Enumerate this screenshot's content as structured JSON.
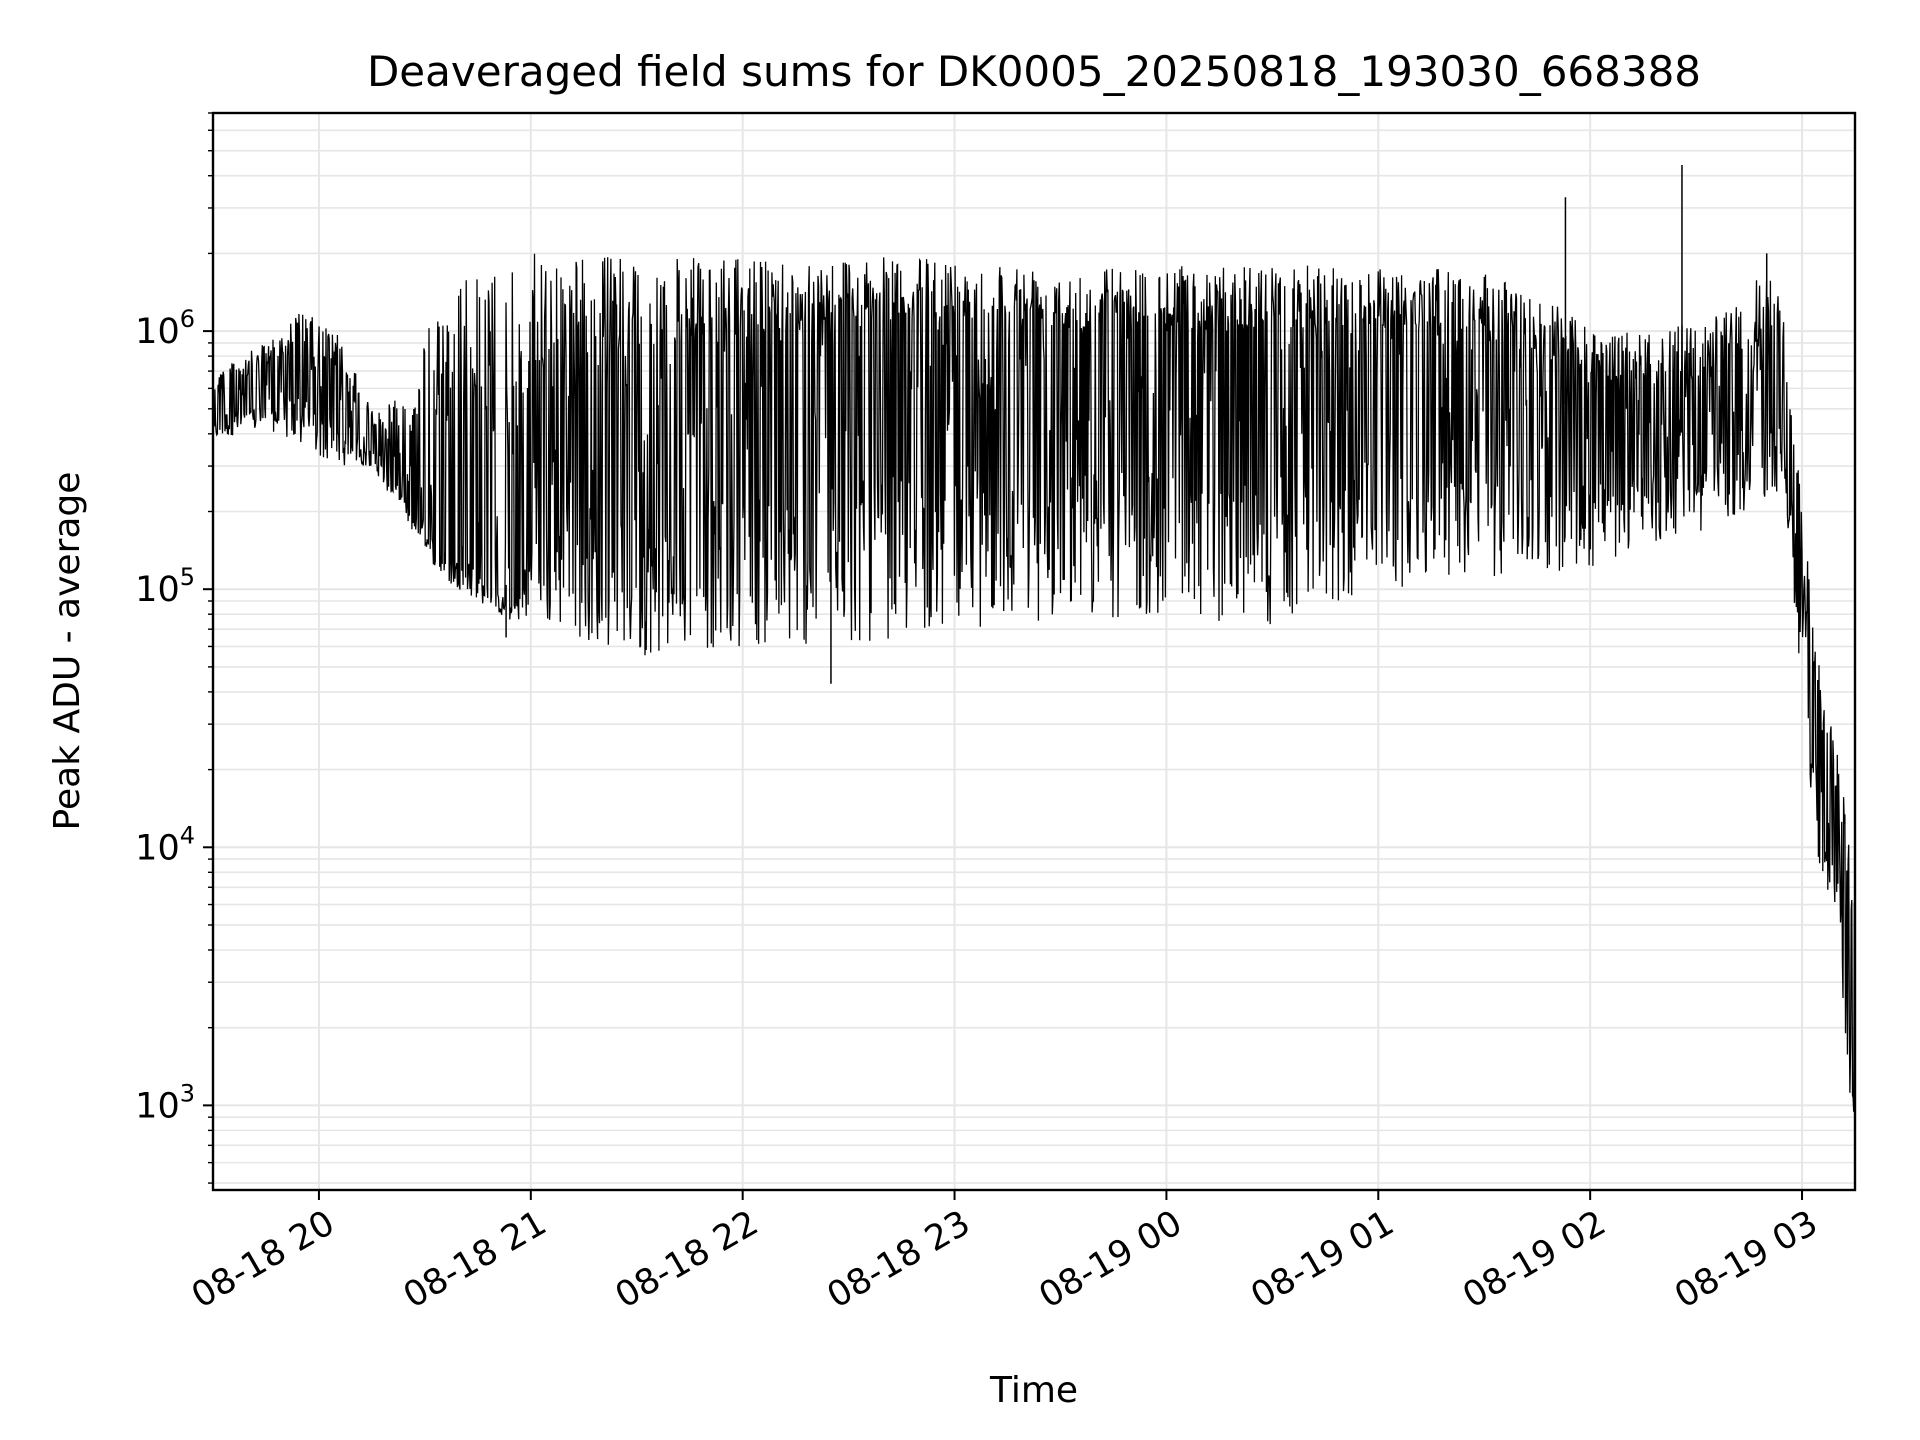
{
  "chart_data": {
    "type": "line",
    "title": "Deaveraged field sums for DK0005_20250818_193030_668388",
    "xlabel": "Time",
    "ylabel": "Peak ADU - average",
    "yscale": "log",
    "ylim": [
      470,
      7000000
    ],
    "xlim": [
      "2025-08-18 19:30",
      "2025-08-19 03:15"
    ],
    "grid": true,
    "line_color": "#000000",
    "grid_color": "#e6e6e6",
    "x_ticks": [
      {
        "at": "2025-08-18 20:00",
        "label": "08-18 20"
      },
      {
        "at": "2025-08-18 21:00",
        "label": "08-18 21"
      },
      {
        "at": "2025-08-18 22:00",
        "label": "08-18 22"
      },
      {
        "at": "2025-08-18 23:00",
        "label": "08-18 23"
      },
      {
        "at": "2025-08-19 00:00",
        "label": "08-19 00"
      },
      {
        "at": "2025-08-19 01:00",
        "label": "08-19 01"
      },
      {
        "at": "2025-08-19 02:00",
        "label": "08-19 02"
      },
      {
        "at": "2025-08-19 03:00",
        "label": "08-19 03"
      }
    ],
    "y_ticks": [
      {
        "value": 1000,
        "base": "10",
        "exp": "3"
      },
      {
        "value": 10000,
        "base": "10",
        "exp": "4"
      },
      {
        "value": 100000,
        "base": "10",
        "exp": "5"
      },
      {
        "value": 1000000,
        "base": "10",
        "exp": "6"
      }
    ],
    "series": [
      {
        "points": [
          [
            "2025-08-18 19:30",
            500000
          ],
          [
            "2025-08-18 19:35",
            600000
          ],
          [
            "2025-08-18 19:40",
            550000
          ],
          [
            "2025-08-18 19:45",
            650000
          ],
          [
            "2025-08-18 19:50",
            700000
          ],
          [
            "2025-08-18 19:55",
            800000
          ],
          [
            "2025-08-18 20:00",
            650000
          ],
          [
            "2025-08-18 20:05",
            500000
          ],
          [
            "2025-08-18 20:10",
            400000
          ],
          [
            "2025-08-18 20:15",
            380000
          ],
          [
            "2025-08-18 20:20",
            320000
          ],
          [
            "2025-08-18 20:25",
            250000
          ],
          [
            "2025-08-18 20:30",
            200000
          ],
          [
            "2025-08-18 20:35",
            170000
          ],
          [
            "2025-08-18 20:40",
            150000
          ],
          [
            "2025-08-18 20:45",
            130000
          ],
          [
            "2025-08-18 20:50",
            110000
          ],
          [
            "2025-08-18 20:55",
            100000
          ],
          [
            "2025-08-18 21:00",
            300000
          ],
          [
            "2025-08-18 21:15",
            400000
          ],
          [
            "2025-08-18 21:30",
            450000
          ],
          [
            "2025-08-18 21:45",
            500000
          ],
          [
            "2025-08-18 22:00",
            600000
          ],
          [
            "2025-08-18 22:15",
            650000
          ],
          [
            "2025-08-18 22:30",
            700000
          ],
          [
            "2025-08-18 22:45",
            750000
          ],
          [
            "2025-08-18 23:00",
            800000
          ],
          [
            "2025-08-18 23:15",
            750000
          ],
          [
            "2025-08-18 23:30",
            700000
          ],
          [
            "2025-08-18 23:45",
            700000
          ],
          [
            "2025-08-19 00:00",
            700000
          ],
          [
            "2025-08-19 00:15",
            650000
          ],
          [
            "2025-08-19 00:30",
            700000
          ],
          [
            "2025-08-19 00:45",
            700000
          ],
          [
            "2025-08-19 01:00",
            700000
          ],
          [
            "2025-08-19 01:15",
            650000
          ],
          [
            "2025-08-19 01:30",
            600000
          ],
          [
            "2025-08-19 01:45",
            550000
          ],
          [
            "2025-08-19 02:00",
            500000
          ],
          [
            "2025-08-19 02:15",
            450000
          ],
          [
            "2025-08-19 02:30",
            400000
          ],
          [
            "2025-08-19 02:45",
            550000
          ],
          [
            "2025-08-19 02:55",
            650000
          ],
          [
            "2025-08-19 03:00",
            80000
          ],
          [
            "2025-08-19 03:02",
            40000
          ],
          [
            "2025-08-19 03:05",
            15000
          ],
          [
            "2025-08-19 03:08",
            12000
          ],
          [
            "2025-08-19 03:11",
            9000
          ],
          [
            "2025-08-19 03:13",
            5000
          ],
          [
            "2025-08-19 03:15",
            900
          ]
        ],
        "upper_envelope": [
          [
            "2025-08-18 19:30",
            700000
          ],
          [
            "2025-08-18 19:45",
            900000
          ],
          [
            "2025-08-18 19:55",
            1200000
          ],
          [
            "2025-08-18 20:05",
            1000000
          ],
          [
            "2025-08-18 20:15",
            500000
          ],
          [
            "2025-08-18 20:25",
            600000
          ],
          [
            "2025-08-18 20:35",
            1500000
          ],
          [
            "2025-08-18 20:45",
            1700000
          ],
          [
            "2025-08-18 20:55",
            1800000
          ],
          [
            "2025-08-18 21:00",
            2000000
          ],
          [
            "2025-08-18 21:30",
            1950000
          ],
          [
            "2025-08-18 22:00",
            1900000
          ],
          [
            "2025-08-18 22:30",
            1950000
          ],
          [
            "2025-08-18 23:00",
            1900000
          ],
          [
            "2025-08-18 23:30",
            1800000
          ],
          [
            "2025-08-19 00:00",
            1800000
          ],
          [
            "2025-08-19 00:30",
            1800000
          ],
          [
            "2025-08-19 01:00",
            1800000
          ],
          [
            "2025-08-19 01:30",
            1700000
          ],
          [
            "2025-08-19 01:50",
            1300000
          ],
          [
            "2025-08-19 02:00",
            1000000
          ],
          [
            "2025-08-19 02:20",
            1000000
          ],
          [
            "2025-08-19 02:40",
            1200000
          ],
          [
            "2025-08-19 02:50",
            1800000
          ],
          [
            "2025-08-19 02:55",
            1200000
          ],
          [
            "2025-08-19 03:00",
            200000
          ],
          [
            "2025-08-19 03:05",
            50000
          ],
          [
            "2025-08-19 03:10",
            25000
          ],
          [
            "2025-08-19 03:15",
            8000
          ]
        ],
        "lower_envelope": [
          [
            "2025-08-18 19:30",
            380000
          ],
          [
            "2025-08-18 19:45",
            420000
          ],
          [
            "2025-08-18 19:55",
            350000
          ],
          [
            "2025-08-18 20:05",
            300000
          ],
          [
            "2025-08-18 20:15",
            300000
          ],
          [
            "2025-08-18 20:25",
            180000
          ],
          [
            "2025-08-18 20:35",
            110000
          ],
          [
            "2025-08-18 20:45",
            90000
          ],
          [
            "2025-08-18 20:55",
            75000
          ],
          [
            "2025-08-18 21:00",
            75000
          ],
          [
            "2025-08-18 21:30",
            55000
          ],
          [
            "2025-08-18 22:00",
            60000
          ],
          [
            "2025-08-18 22:30",
            60000
          ],
          [
            "2025-08-18 23:00",
            70000
          ],
          [
            "2025-08-18 23:30",
            75000
          ],
          [
            "2025-08-19 00:00",
            80000
          ],
          [
            "2025-08-19 00:30",
            70000
          ],
          [
            "2025-08-19 01:00",
            100000
          ],
          [
            "2025-08-19 01:30",
            110000
          ],
          [
            "2025-08-19 02:00",
            120000
          ],
          [
            "2025-08-19 02:20",
            150000
          ],
          [
            "2025-08-19 02:40",
            180000
          ],
          [
            "2025-08-19 02:55",
            250000
          ],
          [
            "2025-08-19 03:00",
            30000
          ],
          [
            "2025-08-19 03:05",
            8000
          ],
          [
            "2025-08-19 03:10",
            5000
          ],
          [
            "2025-08-19 03:15",
            600
          ]
        ],
        "spikes": [
          [
            "2025-08-19 01:53",
            3300000
          ],
          [
            "2025-08-19 02:26",
            4400000
          ],
          [
            "2025-08-19 02:50",
            2000000
          ],
          [
            "2025-08-18 22:25",
            43000
          ],
          [
            "2025-08-18 20:53",
            65000
          ]
        ]
      }
    ]
  }
}
